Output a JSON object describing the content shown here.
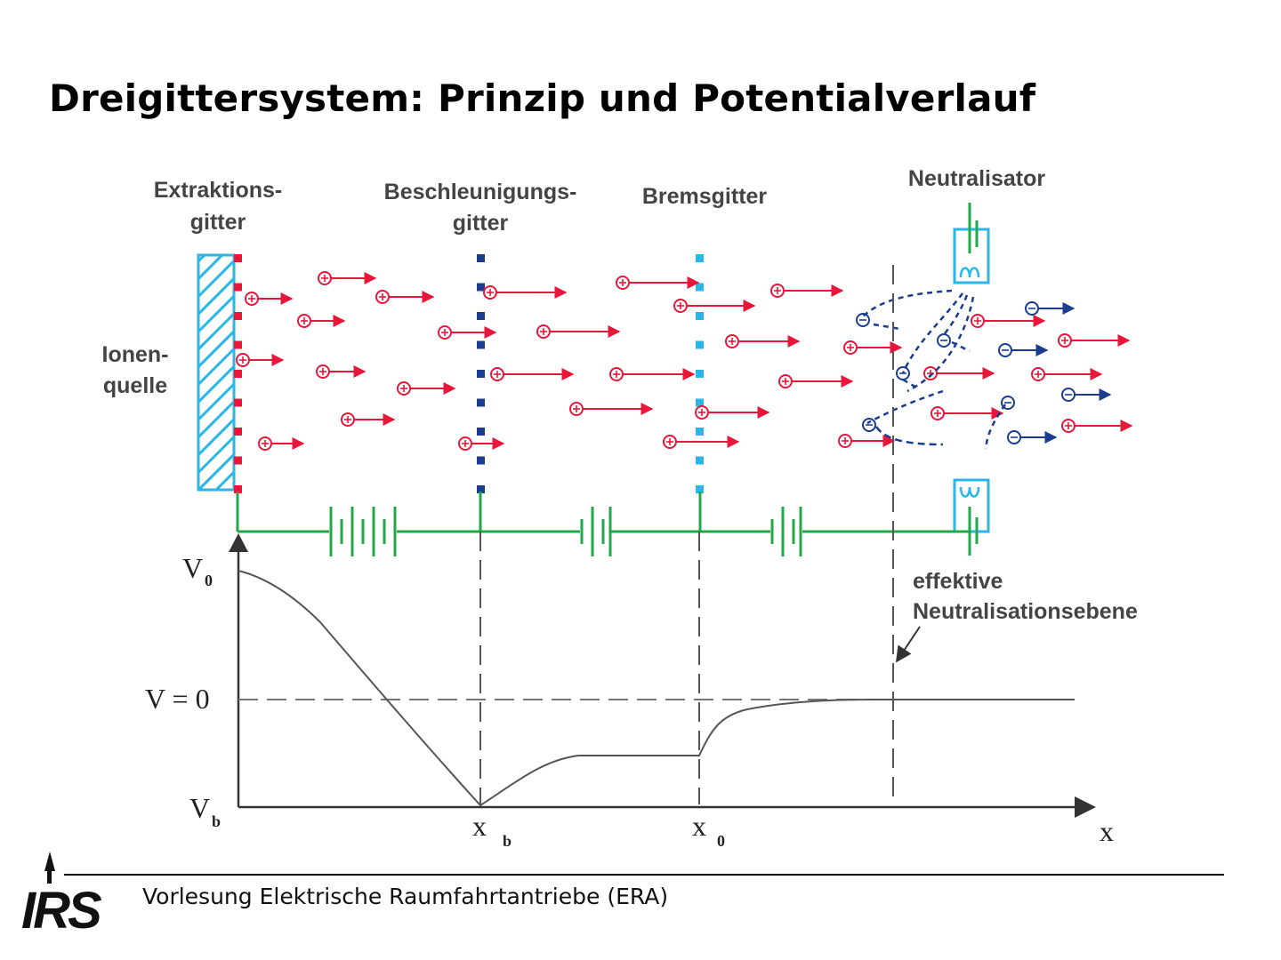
{
  "title": "Dreigittersystem: Prinzip und Potentialverlauf",
  "labels": {
    "ion_source_1": "Ionen-",
    "ion_source_2": "quelle",
    "extraction_1": "Extraktions-",
    "extraction_2": "gitter",
    "acceleration_1": "Beschleunigungs-",
    "acceleration_2": "gitter",
    "decel": "Bremsgitter",
    "neutralizer": "Neutralisator",
    "neutral_plane_1": "effektive",
    "neutral_plane_2": "Neutralisationsebene"
  },
  "axis": {
    "v0": "V",
    "v0_sub": "0",
    "vzero": "V = 0",
    "vb": "V",
    "vb_sub": "b",
    "xb": "x",
    "xb_sub": "b",
    "x0": "x",
    "x0_sub": "0",
    "x": "x"
  },
  "colors": {
    "ion": "#e8173a",
    "electron": "#1a3d8f",
    "circuit": "#22a84a",
    "extraction_grid": "#e8173a",
    "accel_grid": "#1a3d8f",
    "decel_grid": "#29b6e8",
    "source_hatch": "#29b6e8"
  },
  "footer": "Vorlesung Elektrische Raumfahrtantriebe (ERA)",
  "logo_text": "IRS"
}
